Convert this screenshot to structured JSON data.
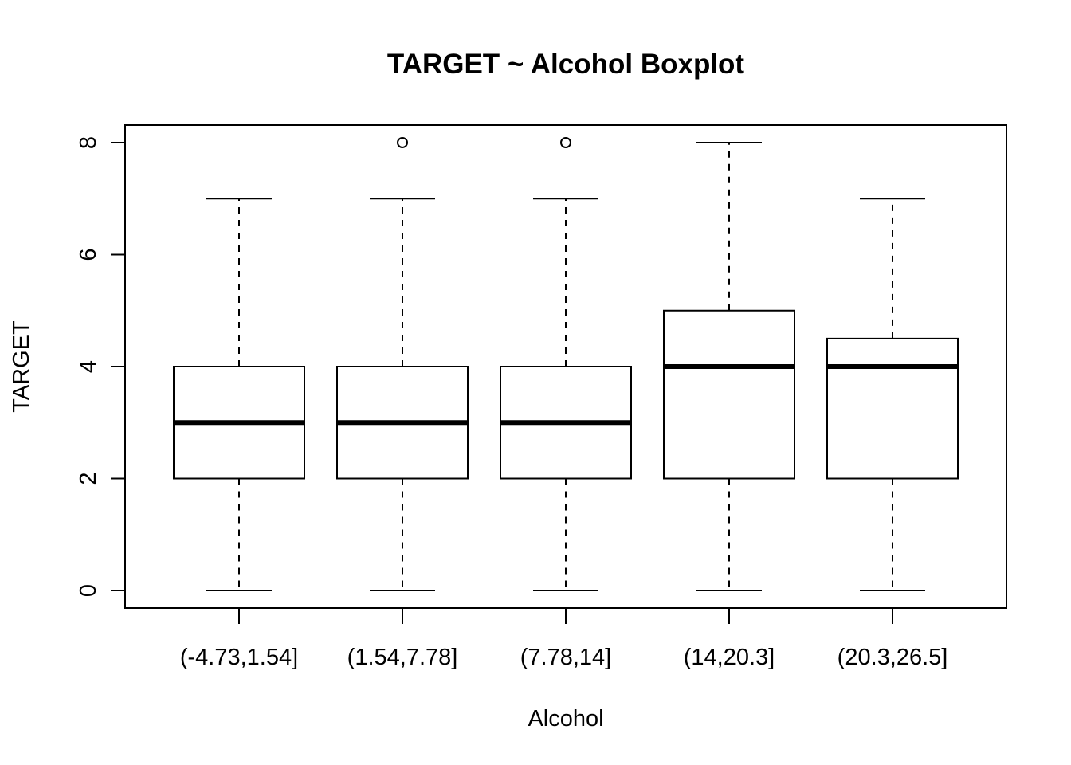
{
  "chart_data": {
    "type": "boxplot",
    "title": "TARGET ~ Alcohol Boxplot",
    "xlabel": "Alcohol",
    "ylabel": "TARGET",
    "ylim": [
      -0.3,
      8.3
    ],
    "yticks": [
      0,
      2,
      4,
      6,
      8
    ],
    "categories": [
      "(-4.73,1.54]",
      "(1.54,7.78]",
      "(7.78,14]",
      "(14,20.3]",
      "(20.3,26.5]"
    ],
    "boxes": [
      {
        "category": "(-4.73,1.54]",
        "whisker_low": 0,
        "q1": 2,
        "median": 3,
        "q3": 4,
        "whisker_high": 7,
        "outliers": []
      },
      {
        "category": "(1.54,7.78]",
        "whisker_low": 0,
        "q1": 2,
        "median": 3,
        "q3": 4,
        "whisker_high": 7,
        "outliers": [
          8
        ]
      },
      {
        "category": "(7.78,14]",
        "whisker_low": 0,
        "q1": 2,
        "median": 3,
        "q3": 4,
        "whisker_high": 7,
        "outliers": [
          8
        ]
      },
      {
        "category": "(14,20.3]",
        "whisker_low": 0,
        "q1": 2,
        "median": 4,
        "q3": 5,
        "whisker_high": 8,
        "outliers": []
      },
      {
        "category": "(20.3,26.5]",
        "whisker_low": 0,
        "q1": 2,
        "median": 4,
        "q3": 4.5,
        "whisker_high": 7,
        "outliers": []
      }
    ],
    "grid": false,
    "legend": "none",
    "colors": {
      "box_fill": "#ffffff",
      "stroke": "#000000"
    }
  }
}
